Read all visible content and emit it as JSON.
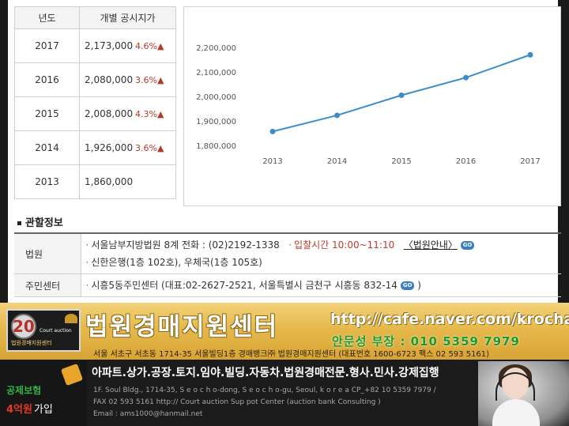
{
  "price_table": {
    "headers": [
      "년도",
      "개별 공시지가"
    ],
    "rows": [
      {
        "year": "2017",
        "price": "2,173,000",
        "rate": "4.6%▲"
      },
      {
        "year": "2016",
        "price": "2,080,000",
        "rate": "3.6%▲"
      },
      {
        "year": "2015",
        "price": "2,008,000",
        "rate": "4.3%▲"
      },
      {
        "year": "2014",
        "price": "1,926,000",
        "rate": "3.6%▲"
      },
      {
        "year": "2013",
        "price": "1,860,000",
        "rate": ""
      }
    ]
  },
  "chart_data": {
    "type": "line",
    "x": [
      "2013",
      "2014",
      "2015",
      "2016",
      "2017"
    ],
    "series": [
      {
        "values": [
          1860000,
          1926000,
          2008000,
          2080000,
          2173000
        ]
      }
    ],
    "yticks": [
      "1,800,000",
      "1,900,000",
      "2,000,000",
      "2,100,000",
      "2,200,000"
    ],
    "ylim": [
      1800000,
      2200000
    ],
    "grid": false,
    "color": "#3a8ccb"
  },
  "related": {
    "title": "관할정보",
    "rows": [
      {
        "label": "법원",
        "line1_text": "서울남부지방법원 8계 전화 : (02)2192-1338",
        "line1_time": "입찰시간 10:00~11:10",
        "line1_link": "〈법원안내〉",
        "line2_text": "신한은행(1층 102호), 우체국(1층 105호)"
      },
      {
        "label": "주민센터",
        "text": "시흥5동주민센터 (대표:02-2627-2521, 서울특별시 금천구 시흥동 832-14",
        "close": ")"
      }
    ],
    "go_label": "GO"
  },
  "banner": {
    "logo_number": "20",
    "logo_en": "Court auction",
    "logo_center": "법원경매지원센터",
    "name": "법원경매지원센터",
    "url": "http://cafe.naver.com/krocha",
    "phone": "안문성 부장 : 010 5359 7979",
    "address": "서울 서초구 서초동 1714-35 서울빌딩1층 경매뱅크㈜ 법원경매지원센터 (대표번호 1600-6723 팩스 02 593 5161)"
  },
  "footer": {
    "insurance_line1": "공제보험",
    "insurance_amount": "4억원",
    "insurance_suffix": "가입",
    "services": "아파트.상가.공장.토지.임야.빌딩.자동차.법원경매전문.형사.민사.강제집행",
    "en_line1": "1F. Soul Bldg., 1714-35, S e o c h o-dong, S e o c h o-gu, Seoul, k o r e a CP_+82  10  5359  7979  /",
    "en_line2": "FAX 02 593 5161  http:// Court auction Sup pot Center (auction  bank Consulting )",
    "en_line3": "Email : ams1000@hanmail.net"
  }
}
